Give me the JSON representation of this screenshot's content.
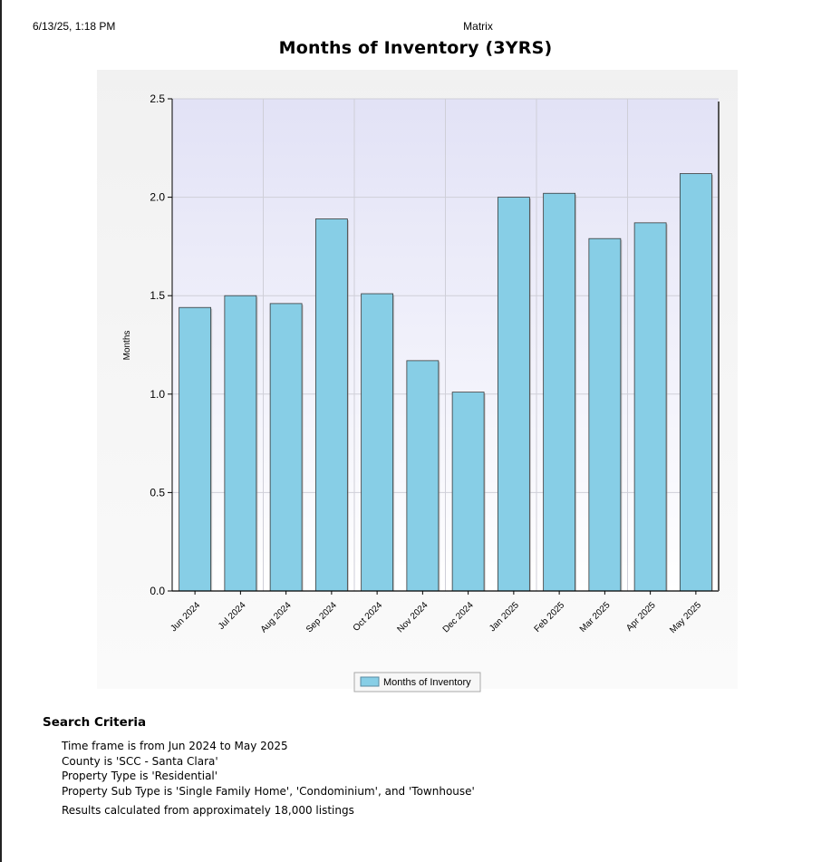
{
  "header": {
    "print_date": "6/13/25, 1:18 PM",
    "app_name": "Matrix"
  },
  "chart_data": {
    "type": "bar",
    "title": "Months of Inventory (3YRS)",
    "ylabel": "Months",
    "xlabel": "",
    "ylim": [
      0,
      2.5
    ],
    "yticks": [
      "0.0",
      "0.5",
      "1.0",
      "1.5",
      "2.0",
      "2.5"
    ],
    "grid": true,
    "legend_position": "bottom-center",
    "categories": [
      "Jun 2024",
      "Jul 2024",
      "Aug 2024",
      "Sep 2024",
      "Oct 2024",
      "Nov 2024",
      "Dec 2024",
      "Jan 2025",
      "Feb 2025",
      "Mar 2025",
      "Apr 2025",
      "May 2025"
    ],
    "series": [
      {
        "name": "Months of Inventory",
        "color": "#87CEE6",
        "values": [
          1.44,
          1.5,
          1.46,
          1.89,
          1.51,
          1.17,
          1.01,
          2.0,
          2.02,
          1.79,
          1.87,
          2.12
        ]
      }
    ]
  },
  "criteria": {
    "heading": "Search Criteria",
    "items": [
      "Time frame is from Jun 2024 to May 2025",
      "County is 'SCC - Santa Clara'",
      "Property Type is 'Residential'",
      "Property Sub Type is 'Single Family Home', 'Condominium', and 'Townhouse'"
    ],
    "footer": "Results calculated from approximately 18,000 listings"
  }
}
